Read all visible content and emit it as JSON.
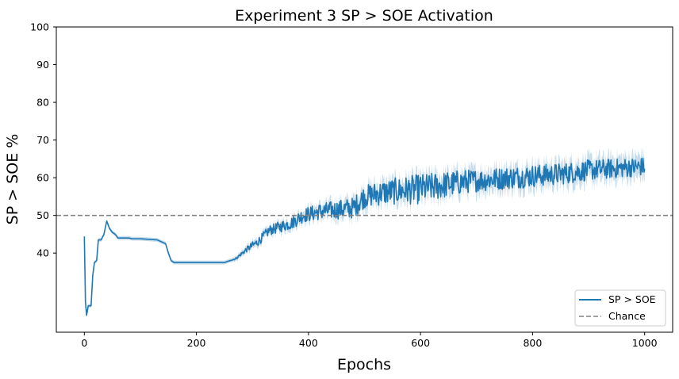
{
  "chart_data": {
    "type": "line",
    "title": "Experiment 3 SP > SOE Activation",
    "xlabel": "Epochs",
    "ylabel": "SP > SOE %",
    "xlim": [
      -50,
      1050
    ],
    "ylim": [
      19,
      100
    ],
    "x_ticks": [
      0,
      200,
      400,
      600,
      800,
      1000
    ],
    "y_ticks": [
      40,
      50,
      60,
      70,
      80,
      90,
      100
    ],
    "legend_position": "bottom-right",
    "series": [
      {
        "name": "SP > SOE",
        "color": "#1f77b4",
        "x_range": [
          0,
          1000
        ],
        "key_points": [
          [
            0,
            44.4
          ],
          [
            2,
            27
          ],
          [
            4,
            23.5
          ],
          [
            7,
            26
          ],
          [
            12,
            26
          ],
          [
            15,
            34
          ],
          [
            18,
            37.5
          ],
          [
            22,
            38
          ],
          [
            25,
            43.5
          ],
          [
            30,
            43.5
          ],
          [
            35,
            45
          ],
          [
            40,
            48.5
          ],
          [
            45,
            46.5
          ],
          [
            50,
            45.5
          ],
          [
            55,
            45
          ],
          [
            60,
            44
          ],
          [
            80,
            44
          ],
          [
            85,
            43.8
          ],
          [
            100,
            43.8
          ],
          [
            130,
            43.5
          ],
          [
            145,
            42.5
          ],
          [
            150,
            40
          ],
          [
            155,
            38
          ],
          [
            160,
            37.5
          ],
          [
            250,
            37.5
          ],
          [
            270,
            38.5
          ],
          [
            290,
            41
          ],
          [
            310,
            43
          ],
          [
            330,
            46
          ],
          [
            350,
            47
          ],
          [
            370,
            48
          ],
          [
            390,
            50
          ],
          [
            420,
            51
          ],
          [
            450,
            51.5
          ],
          [
            480,
            52
          ],
          [
            500,
            55
          ],
          [
            530,
            56
          ],
          [
            560,
            56.5
          ],
          [
            600,
            57
          ],
          [
            640,
            58
          ],
          [
            680,
            59
          ],
          [
            720,
            59.5
          ],
          [
            760,
            60
          ],
          [
            800,
            60.5
          ],
          [
            850,
            61
          ],
          [
            900,
            62
          ],
          [
            950,
            62.5
          ],
          [
            1000,
            63
          ]
        ],
        "noise_amplitude": [
          [
            0,
            0
          ],
          [
            260,
            0
          ],
          [
            300,
            1
          ],
          [
            400,
            2
          ],
          [
            500,
            3
          ],
          [
            600,
            4
          ],
          [
            700,
            3
          ],
          [
            800,
            3
          ],
          [
            1000,
            2.5
          ]
        ],
        "band_halfwidth": [
          [
            0,
            0.5
          ],
          [
            260,
            0.5
          ],
          [
            300,
            1
          ],
          [
            400,
            1.5
          ],
          [
            500,
            2.5
          ],
          [
            1000,
            3
          ]
        ]
      },
      {
        "name": "Chance",
        "color": "#808080",
        "line_style": "dashed",
        "y_value": 50
      }
    ]
  }
}
